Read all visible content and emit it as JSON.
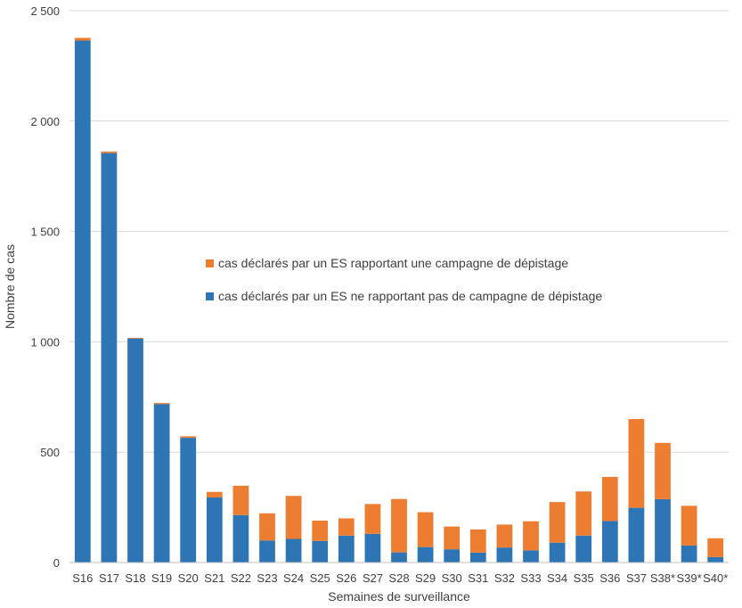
{
  "chart_data": {
    "type": "bar",
    "stacked": true,
    "title": "",
    "xlabel": "Semaines de surveillance",
    "ylabel": "Nombre de cas",
    "ylim": [
      0,
      2500
    ],
    "yticks": [
      0,
      500,
      1000,
      1500,
      2000,
      2500
    ],
    "ytick_labels": [
      "0",
      "500",
      "1 000",
      "1 500",
      "2 000",
      "2 500"
    ],
    "grid": true,
    "legend_position": "center",
    "categories": [
      "S16",
      "S17",
      "S18",
      "S19",
      "S20",
      "S21",
      "S22",
      "S23",
      "S24",
      "S25",
      "S26",
      "S27",
      "S28",
      "S29",
      "S30",
      "S31",
      "S32",
      "S33",
      "S34",
      "S35",
      "S36",
      "S37",
      "S38*",
      "S39*",
      "S40*"
    ],
    "series": [
      {
        "name": "cas déclarés par un ES ne rapportant pas de campagne de dépistage",
        "color": "#2e75b6",
        "values": [
          2365,
          1855,
          1015,
          718,
          565,
          295,
          215,
          100,
          107,
          98,
          122,
          130,
          46,
          70,
          60,
          45,
          68,
          55,
          90,
          122,
          188,
          248,
          287,
          77,
          25
        ]
      },
      {
        "name": "cas déclarés par un ES rapportant une campagne de dépistage",
        "color": "#ed7d31",
        "values": [
          12,
          7,
          3,
          5,
          7,
          25,
          133,
          123,
          195,
          92,
          78,
          135,
          242,
          158,
          103,
          105,
          104,
          132,
          184,
          200,
          200,
          402,
          255,
          180,
          85
        ]
      }
    ]
  }
}
